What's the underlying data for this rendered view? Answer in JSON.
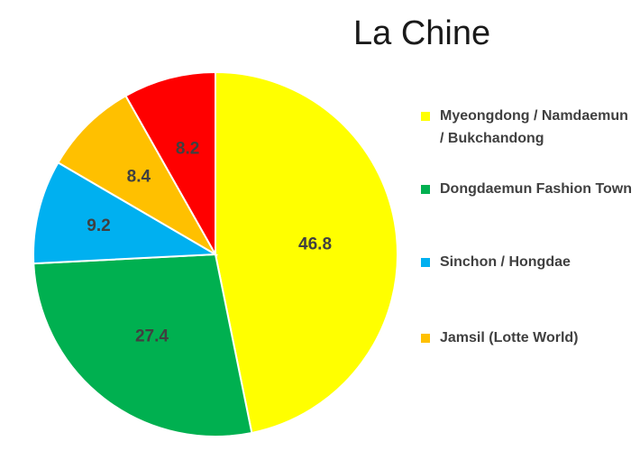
{
  "chart_data": {
    "type": "pie",
    "title": "La Chine",
    "legend_position": "right",
    "slices": [
      {
        "label": "Myeongdong / Namdaemun / Bukchandong",
        "value": 46.8,
        "value_label": "46.8",
        "color": "#FFFF00",
        "in_legend": true
      },
      {
        "label": "Dongdaemun Fashion Town",
        "value": 27.4,
        "value_label": "27.4",
        "color": "#00B050",
        "in_legend": true
      },
      {
        "label": "Sinchon / Hongdae",
        "value": 9.2,
        "value_label": "9.2",
        "color": "#00B0F0",
        "in_legend": true
      },
      {
        "label": "Jamsil (Lotte World)",
        "value": 8.4,
        "value_label": "8.4",
        "color": "#FFC000",
        "in_legend": true
      },
      {
        "label": "",
        "value": 8.2,
        "value_label": "8.2",
        "color": "#FF0000",
        "in_legend": false
      }
    ]
  }
}
